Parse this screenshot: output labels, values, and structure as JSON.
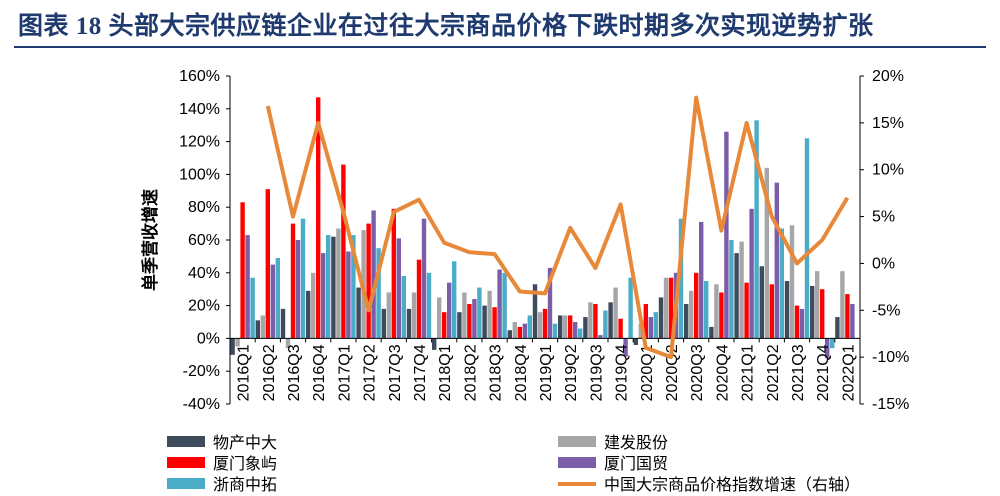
{
  "figure": {
    "title": "图表 18    头部大宗供应链企业在过往大宗商品价格下跌时期多次实现逆势扩张"
  },
  "chart_data": {
    "type": "bar",
    "categories": [
      "2016Q1",
      "2016Q2",
      "2016Q3",
      "2016Q4",
      "2017Q1",
      "2017Q2",
      "2017Q3",
      "2017Q4",
      "2018Q1",
      "2018Q2",
      "2018Q3",
      "2018Q4",
      "2019Q1",
      "2019Q2",
      "2019Q3",
      "2019Q4",
      "2020Q1",
      "2020Q2",
      "2020Q3",
      "2020Q4",
      "2021Q1",
      "2021Q2",
      "2021Q3",
      "2021Q4",
      "2022Q1"
    ],
    "ylabel": "单季营收增速",
    "ylim": [
      -40,
      160
    ],
    "yticks": [
      "-40%",
      "-20%",
      "0%",
      "20%",
      "40%",
      "60%",
      "80%",
      "100%",
      "120%",
      "140%",
      "160%"
    ],
    "y2lim": [
      -15,
      20
    ],
    "y2ticks": [
      "-15%",
      "-10%",
      "-5%",
      "0%",
      "5%",
      "10%",
      "15%",
      "20%"
    ],
    "series": [
      {
        "name": "物产中大",
        "type": "bar",
        "color": "#3d4b5c",
        "values": [
          -10,
          11,
          18,
          29,
          62,
          31,
          18,
          18,
          -7,
          16,
          20,
          5,
          33,
          14,
          13,
          22,
          -4,
          25,
          21,
          7,
          52,
          44,
          35,
          32,
          13
        ]
      },
      {
        "name": "建发股份",
        "type": "bar",
        "color": "#a6a6a6",
        "values": [
          -5,
          14,
          -6,
          40,
          67,
          66,
          28,
          28,
          25,
          28,
          29,
          10,
          16,
          14,
          22,
          31,
          9,
          37,
          29,
          33,
          59,
          104,
          69,
          41,
          41
        ]
      },
      {
        "name": "厦门象屿",
        "type": "bar",
        "color": "#ff0000",
        "values": [
          83,
          91,
          70,
          147,
          106,
          70,
          79,
          48,
          16,
          21,
          19,
          7,
          18,
          14,
          21,
          12,
          21,
          37,
          40,
          28,
          34,
          33,
          20,
          30,
          27
        ]
      },
      {
        "name": "厦门国贸",
        "type": "bar",
        "color": "#7b5ea7",
        "values": [
          63,
          45,
          60,
          52,
          53,
          78,
          61,
          73,
          34,
          24,
          42,
          9,
          43,
          10,
          2,
          -11,
          13,
          40,
          71,
          126,
          79,
          95,
          18,
          -12,
          21
        ]
      },
      {
        "name": "浙商中拓",
        "type": "bar",
        "color": "#4aacc6",
        "values": [
          37,
          49,
          73,
          63,
          63,
          55,
          38,
          40,
          47,
          31,
          40,
          14,
          9,
          6,
          17,
          37,
          16,
          73,
          35,
          60,
          133,
          67,
          122,
          -6,
          0
        ]
      },
      {
        "name": "中国大宗商品价格指数增速（右轴）",
        "type": "line",
        "axis": "right",
        "color": "#e8893a",
        "values": [
          null,
          16.8,
          5,
          15,
          5.5,
          -5,
          5.5,
          6.8,
          2.2,
          1.2,
          1,
          -3,
          -3.2,
          3.8,
          -0.5,
          6.3,
          -9,
          -10,
          17.7,
          3.5,
          15,
          5,
          0,
          2.5,
          7
        ]
      }
    ],
    "legend": "bottom",
    "grid": false
  }
}
